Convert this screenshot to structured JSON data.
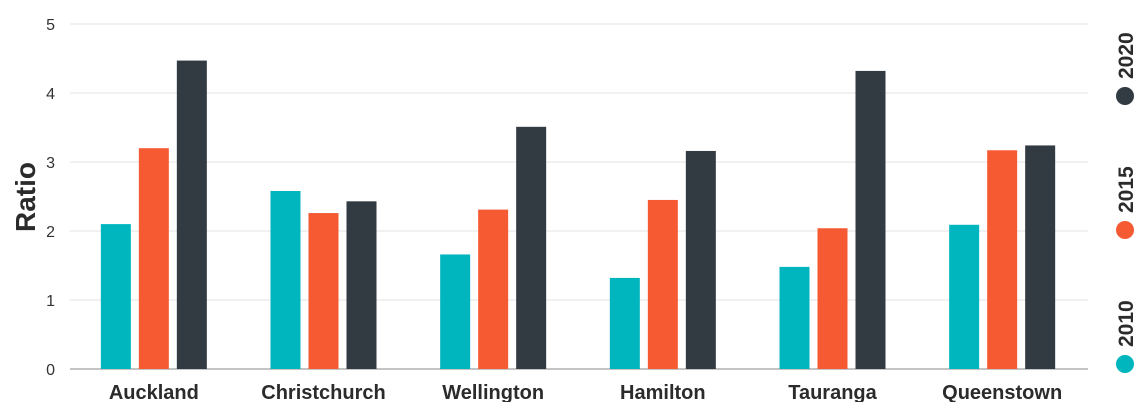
{
  "chart_data": {
    "type": "bar",
    "ylabel": "Ratio",
    "ylim": [
      0,
      5
    ],
    "yticks": [
      0,
      1,
      2,
      3,
      4,
      5
    ],
    "grid": true,
    "legend_position": "right",
    "categories": [
      "Auckland",
      "Christchurch",
      "Wellington",
      "Hamilton",
      "Tauranga",
      "Queenstown"
    ],
    "series": [
      {
        "name": "2010",
        "color": "#00b6be",
        "values": [
          2.1,
          2.58,
          1.66,
          1.32,
          1.48,
          2.09
        ]
      },
      {
        "name": "2015",
        "color": "#f55a33",
        "values": [
          3.2,
          2.26,
          2.31,
          2.45,
          2.04,
          3.17
        ]
      },
      {
        "name": "2020",
        "color": "#323a42",
        "values": [
          4.47,
          2.43,
          3.51,
          3.16,
          4.32,
          3.24
        ]
      }
    ]
  }
}
